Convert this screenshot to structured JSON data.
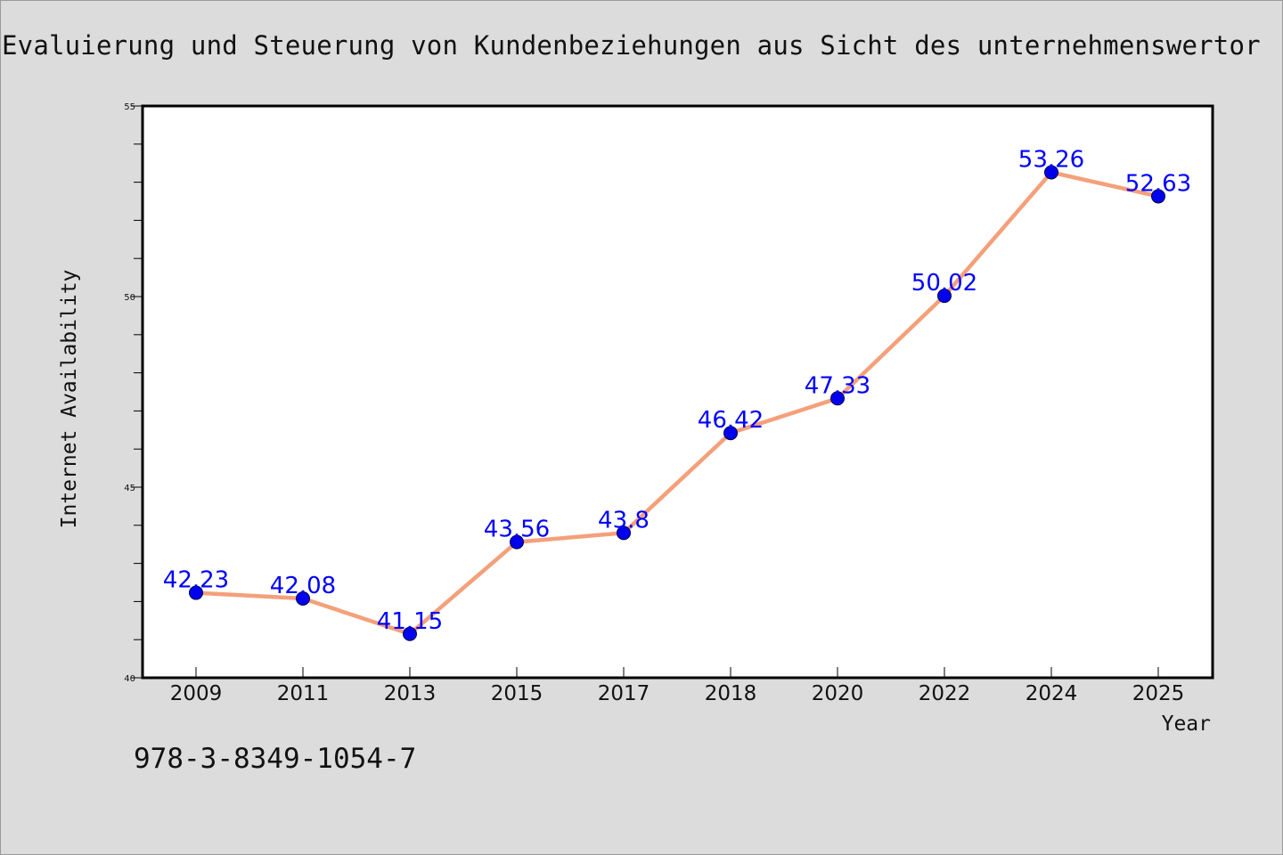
{
  "page": {
    "footnote": "978-3-8349-1054-7"
  },
  "colors": {
    "background": "#dcdcdc",
    "plot_background": "#ffffff",
    "line": "#f4a07a",
    "marker": "#0000ee",
    "data_label": "#0000ff",
    "axis": "#000000"
  },
  "chart_data": {
    "type": "line",
    "title": "Evaluierung und Steuerung von Kundenbeziehungen aus Sicht des unternehmenswertor",
    "xlabel": "Year",
    "ylabel": "Internet Availability",
    "categories": [
      "2009",
      "2011",
      "2013",
      "2015",
      "2017",
      "2018",
      "2020",
      "2022",
      "2024",
      "2025"
    ],
    "series": [
      {
        "values": [
          42.23,
          42.08,
          41.15,
          43.56,
          43.8,
          46.42,
          47.33,
          50.02,
          53.26,
          52.63
        ],
        "labels": [
          "42.23",
          "42.08",
          "41.15",
          "43.56",
          "43.8",
          "46.42",
          "47.33",
          "50.02",
          "53.26",
          "52.63"
        ]
      }
    ],
    "ylim": [
      40,
      55
    ],
    "yticks": [
      40,
      45,
      50,
      55
    ],
    "yminor_step": 1,
    "grid": false,
    "legend": false
  }
}
